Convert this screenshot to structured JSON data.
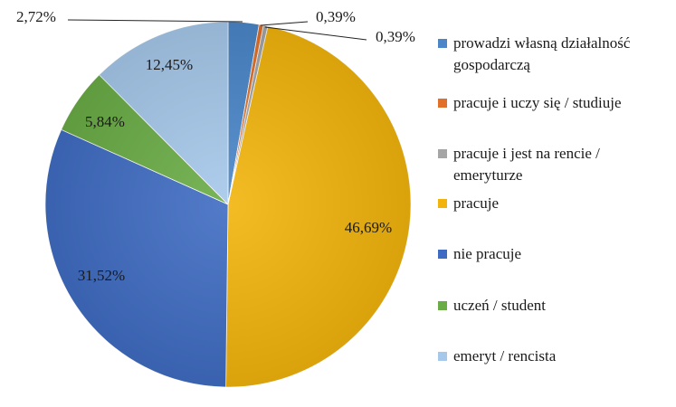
{
  "chart_data": {
    "type": "pie",
    "slices": [
      {
        "label": "prowadzi własną działalność gospodarczą",
        "value": 2.72,
        "display": "2,72%",
        "color": "#4a86c8"
      },
      {
        "label": "pracuje i uczy się / studiuje",
        "value": 0.39,
        "display": "0,39%",
        "color": "#e0702a"
      },
      {
        "label": "pracuje i jest na rencie / emeryturze",
        "value": 0.39,
        "display": "0,39%",
        "color": "#a5a5a5"
      },
      {
        "label": "pracuje",
        "value": 46.69,
        "display": "46,69%",
        "color": "#f2b40c"
      },
      {
        "label": "nie pracuje",
        "value": 31.52,
        "display": "31,52%",
        "color": "#3f6cc2"
      },
      {
        "label": "uczeń / student",
        "value": 5.84,
        "display": "5,84%",
        "color": "#6aac46"
      },
      {
        "label": "emeryt / rencista",
        "value": 12.45,
        "display": "12,45%",
        "color": "#a6c8ea"
      }
    ],
    "legend_position": "right"
  }
}
